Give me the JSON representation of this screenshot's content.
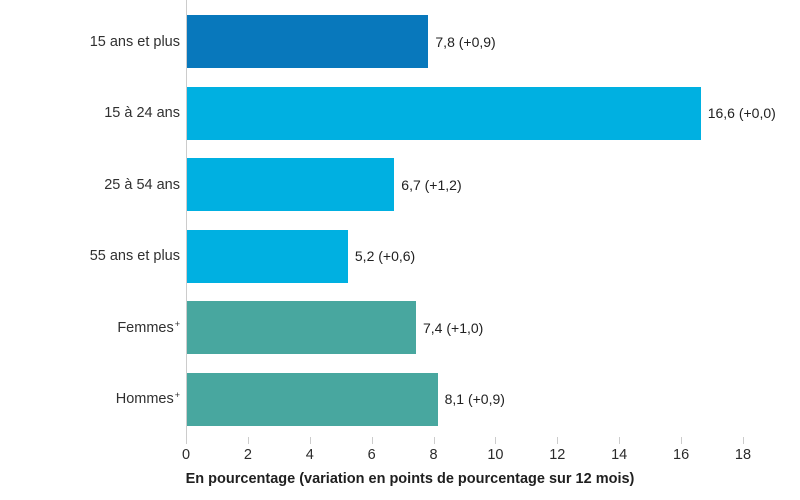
{
  "chart_data": {
    "type": "bar",
    "orientation": "horizontal",
    "title": "",
    "xlabel": "En pourcentage (variation en points de pourcentage sur 12 mois)",
    "xlim": [
      0,
      18
    ],
    "xticks": [
      "0",
      "2",
      "4",
      "6",
      "8",
      "10",
      "12",
      "14",
      "16",
      "18"
    ],
    "grid": false,
    "legend": "none",
    "categories": [
      {
        "label": "15 ans et plus",
        "suffix": ""
      },
      {
        "label": "15 à 24 ans",
        "suffix": ""
      },
      {
        "label": "25 à 54 ans",
        "suffix": ""
      },
      {
        "label": "55 ans et plus",
        "suffix": ""
      },
      {
        "label": "Femmes",
        "suffix": "+"
      },
      {
        "label": "Hommes",
        "suffix": "+"
      }
    ],
    "values": [
      7.8,
      16.6,
      6.7,
      5.2,
      7.4,
      8.1
    ],
    "variations_12_mois": [
      0.9,
      0.0,
      1.2,
      0.6,
      1.0,
      0.9
    ],
    "value_labels": [
      "7,8 (+0,9)",
      "16,6 (+0,0)",
      "6,7 (+1,2)",
      "5,2 (+0,6)",
      "7,4 (+1,0)",
      "8,1 (+0,9)"
    ],
    "bar_colors": [
      "#0878bc",
      "#00b0e1",
      "#00b0e1",
      "#00b0e1",
      "#48a79f",
      "#48a79f"
    ]
  },
  "colors": {
    "dark_blue": "#0878bc",
    "cyan": "#00b0e1",
    "teal": "#48a79f",
    "axis_line": "#cccccc",
    "text": "#212121"
  }
}
